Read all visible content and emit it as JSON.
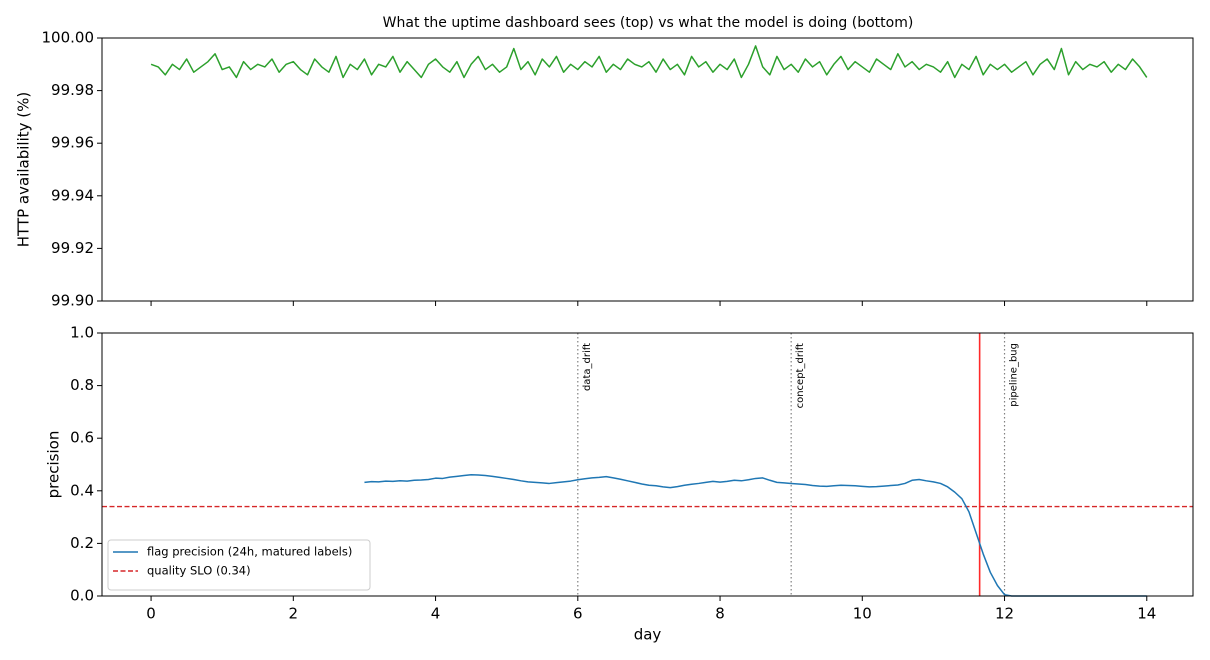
{
  "chart_data": [
    {
      "type": "line",
      "title": "What the uptime dashboard sees (top) vs what the model is doing (bottom)",
      "ylabel": "HTTP availability (%)",
      "xlim": [
        -0.69,
        14.65
      ],
      "xticks": [
        0,
        2,
        4,
        6,
        8,
        10,
        12,
        14
      ],
      "xtick_labels": false,
      "ylim": [
        99.9,
        100.0
      ],
      "yticks": [
        {
          "value": 99.9,
          "label": "99.90"
        },
        99.92,
        99.94,
        99.96,
        99.98,
        {
          "value": 100.0,
          "label": "100.00"
        }
      ],
      "x": [
        0,
        0.1,
        0.2,
        0.3,
        0.4,
        0.5,
        0.6,
        0.7,
        0.8,
        0.9,
        1,
        1.1,
        1.2,
        1.3,
        1.4,
        1.5,
        1.6,
        1.7,
        1.8,
        1.9,
        2,
        2.1,
        2.2,
        2.3,
        2.4,
        2.5,
        2.6,
        2.7,
        2.8,
        2.9,
        3,
        3.1,
        3.2,
        3.3,
        3.4,
        3.5,
        3.6,
        3.7,
        3.8,
        3.9,
        4,
        4.1,
        4.2,
        4.3,
        4.4,
        4.5,
        4.6,
        4.7,
        4.8,
        4.9,
        5,
        5.1,
        5.2,
        5.3,
        5.4,
        5.5,
        5.6,
        5.7,
        5.8,
        5.9,
        6,
        6.1,
        6.2,
        6.3,
        6.4,
        6.5,
        6.6,
        6.7,
        6.8,
        6.9,
        7,
        7.1,
        7.2,
        7.3,
        7.4,
        7.5,
        7.6,
        7.7,
        7.8,
        7.9,
        8,
        8.1,
        8.2,
        8.3,
        8.4,
        8.5,
        8.6,
        8.7,
        8.8,
        8.9,
        9,
        9.1,
        9.2,
        9.3,
        9.4,
        9.5,
        9.6,
        9.7,
        9.8,
        9.9,
        10,
        10.1,
        10.2,
        10.3,
        10.4,
        10.5,
        10.6,
        10.7,
        10.8,
        10.9,
        11,
        11.1,
        11.2,
        11.3,
        11.4,
        11.5,
        11.6,
        11.7,
        11.8,
        11.9,
        12,
        12.1,
        12.2,
        12.3,
        12.4,
        12.5,
        12.6,
        12.7,
        12.8,
        12.9,
        13,
        13.1,
        13.2,
        13.3,
        13.4,
        13.5,
        13.6,
        13.7,
        13.8,
        13.9,
        14
      ],
      "series": [
        {
          "color": "#2ca02c",
          "values": [
            99.99,
            99.989,
            99.986,
            99.99,
            99.988,
            99.992,
            99.987,
            99.989,
            99.991,
            99.994,
            99.988,
            99.989,
            99.985,
            99.991,
            99.988,
            99.99,
            99.989,
            99.992,
            99.987,
            99.99,
            99.991,
            99.988,
            99.986,
            99.992,
            99.989,
            99.987,
            99.993,
            99.985,
            99.99,
            99.988,
            99.992,
            99.986,
            99.99,
            99.989,
            99.993,
            99.987,
            99.991,
            99.988,
            99.985,
            99.99,
            99.992,
            99.989,
            99.987,
            99.991,
            99.985,
            99.99,
            99.993,
            99.988,
            99.99,
            99.987,
            99.989,
            99.996,
            99.988,
            99.991,
            99.986,
            99.992,
            99.989,
            99.993,
            99.987,
            99.99,
            99.988,
            99.991,
            99.989,
            99.993,
            99.987,
            99.99,
            99.988,
            99.992,
            99.99,
            99.989,
            99.991,
            99.987,
            99.992,
            99.988,
            99.99,
            99.986,
            99.993,
            99.989,
            99.991,
            99.987,
            99.99,
            99.988,
            99.992,
            99.985,
            99.99,
            99.997,
            99.989,
            99.986,
            99.993,
            99.988,
            99.99,
            99.987,
            99.992,
            99.989,
            99.991,
            99.986,
            99.99,
            99.993,
            99.988,
            99.991,
            99.989,
            99.987,
            99.992,
            99.99,
            99.988,
            99.994,
            99.989,
            99.991,
            99.988,
            99.99,
            99.989,
            99.987,
            99.991,
            99.985,
            99.99,
            99.988,
            99.993,
            99.986,
            99.99,
            99.988,
            99.99,
            99.987,
            99.989,
            99.991,
            99.986,
            99.99,
            99.992,
            99.988,
            99.996,
            99.986,
            99.991,
            99.988,
            99.99,
            99.989,
            99.991,
            99.987,
            99.99,
            99.988,
            99.992,
            99.989,
            99.985
          ]
        }
      ]
    },
    {
      "type": "line",
      "ylabel": "precision",
      "xlabel": "day",
      "xlim": [
        -0.69,
        14.65
      ],
      "xticks": [
        0,
        2,
        4,
        6,
        8,
        10,
        12,
        14
      ],
      "xtick_labels": true,
      "ylim": [
        0,
        1
      ],
      "yticks": [
        {
          "value": 0,
          "label": "0.0"
        },
        0.2,
        0.4,
        0.6,
        0.8,
        {
          "value": 1,
          "label": "1.0"
        }
      ],
      "x": [
        3,
        3.1,
        3.2,
        3.3,
        3.4,
        3.5,
        3.6,
        3.7,
        3.8,
        3.9,
        4,
        4.1,
        4.2,
        4.3,
        4.4,
        4.5,
        4.6,
        4.7,
        4.8,
        4.9,
        5,
        5.1,
        5.2,
        5.3,
        5.4,
        5.5,
        5.6,
        5.7,
        5.8,
        5.9,
        6,
        6.1,
        6.2,
        6.3,
        6.4,
        6.5,
        6.6,
        6.7,
        6.8,
        6.9,
        7,
        7.1,
        7.2,
        7.3,
        7.4,
        7.5,
        7.6,
        7.7,
        7.8,
        7.9,
        8,
        8.1,
        8.2,
        8.3,
        8.4,
        8.5,
        8.6,
        8.7,
        8.8,
        8.9,
        9,
        9.1,
        9.2,
        9.3,
        9.4,
        9.5,
        9.6,
        9.7,
        9.8,
        9.9,
        10,
        10.1,
        10.2,
        10.3,
        10.4,
        10.5,
        10.6,
        10.7,
        10.8,
        10.9,
        11,
        11.1,
        11.2,
        11.3,
        11.4,
        11.5,
        11.6,
        11.7,
        11.8,
        11.9,
        12,
        12.1,
        12.2,
        12.3,
        12.4,
        12.5,
        12.6,
        12.7,
        12.8,
        12.9,
        13,
        13.1,
        13.2,
        13.3,
        13.4,
        13.5,
        13.6,
        13.7,
        13.8,
        13.9,
        14
      ],
      "series": [
        {
          "name": "flag precision (24h, matured labels)",
          "color": "#1f77b4",
          "values": [
            0.432,
            0.435,
            0.434,
            0.437,
            0.436,
            0.438,
            0.437,
            0.44,
            0.441,
            0.443,
            0.448,
            0.447,
            0.452,
            0.455,
            0.458,
            0.461,
            0.46,
            0.458,
            0.455,
            0.451,
            0.447,
            0.443,
            0.438,
            0.434,
            0.432,
            0.43,
            0.428,
            0.431,
            0.434,
            0.437,
            0.442,
            0.446,
            0.449,
            0.451,
            0.454,
            0.449,
            0.444,
            0.438,
            0.432,
            0.426,
            0.421,
            0.419,
            0.415,
            0.412,
            0.416,
            0.421,
            0.425,
            0.428,
            0.432,
            0.436,
            0.433,
            0.436,
            0.44,
            0.438,
            0.442,
            0.447,
            0.449,
            0.44,
            0.432,
            0.43,
            0.428,
            0.426,
            0.424,
            0.42,
            0.418,
            0.417,
            0.419,
            0.421,
            0.42,
            0.419,
            0.417,
            0.415,
            0.416,
            0.418,
            0.42,
            0.422,
            0.428,
            0.44,
            0.443,
            0.438,
            0.434,
            0.428,
            0.415,
            0.395,
            0.37,
            0.32,
            0.24,
            0.16,
            0.09,
            0.04,
            0.005,
            0,
            0,
            0,
            0,
            0,
            0,
            0,
            0,
            0,
            0,
            0,
            0,
            0,
            0,
            0,
            0,
            0,
            0,
            0,
            0
          ]
        }
      ],
      "hlines": [
        {
          "y": 0.34,
          "name": "quality SLO (0.34)",
          "color": "#d62728",
          "style": "dashed"
        }
      ],
      "vlines": [
        {
          "x": 6,
          "label": "data_drift",
          "color": "#808080",
          "style": "dotted"
        },
        {
          "x": 9,
          "label": "concept_drift",
          "color": "#808080",
          "style": "dotted"
        },
        {
          "x": 12,
          "label": "pipeline_bug",
          "color": "#808080",
          "style": "dotted"
        },
        {
          "x": 11.65,
          "color": "#ff2a2a",
          "style": "solid"
        }
      ],
      "legend": "lower left"
    }
  ]
}
